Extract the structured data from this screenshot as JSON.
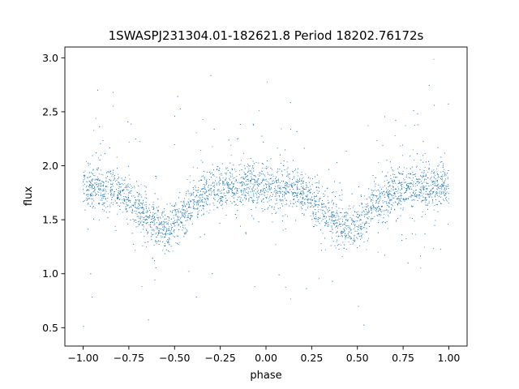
{
  "chart_data": {
    "type": "scatter",
    "title": "1SWASPJ231304.01-182621.8 Period 18202.76172s",
    "xlabel": "phase",
    "ylabel": "flux",
    "xlim": [
      -1.1,
      1.1
    ],
    "ylim": [
      0.33,
      3.1
    ],
    "grid": false,
    "marker_color": "#1f77b4",
    "x_ticks": [
      -1.0,
      -0.75,
      -0.5,
      -0.25,
      0.0,
      0.25,
      0.5,
      0.75,
      1.0
    ],
    "x_tick_labels": [
      "−1.00",
      "−0.75",
      "−0.50",
      "−0.25",
      "0.00",
      "0.25",
      "0.50",
      "0.75",
      "1.00"
    ],
    "y_ticks": [
      0.5,
      1.0,
      1.5,
      2.0,
      2.5,
      3.0
    ],
    "y_tick_labels": [
      "0.5",
      "1.0",
      "1.5",
      "2.0",
      "2.5",
      "3.0"
    ],
    "series": [
      {
        "x": [
          -1.0,
          -0.9,
          -0.8,
          -0.7,
          -0.6,
          -0.55,
          -0.5,
          -0.4,
          -0.3,
          -0.2,
          -0.1,
          0.0,
          0.1,
          0.2,
          0.3,
          0.4,
          0.45,
          0.5,
          0.6,
          0.7,
          0.8,
          0.9,
          1.0
        ],
        "y": [
          1.82,
          1.8,
          1.76,
          1.62,
          1.45,
          1.4,
          1.45,
          1.65,
          1.78,
          1.8,
          1.82,
          1.81,
          1.8,
          1.75,
          1.62,
          1.45,
          1.4,
          1.46,
          1.64,
          1.76,
          1.8,
          1.81,
          1.82
        ]
      }
    ]
  }
}
